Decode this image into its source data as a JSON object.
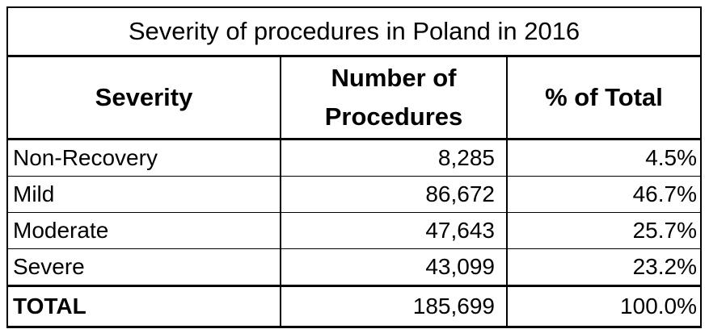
{
  "chart_data": {
    "type": "table",
    "title": "Severity of procedures in Poland in 2016",
    "columns": [
      {
        "line1": "Severity",
        "line2": ""
      },
      {
        "line1": "Number of",
        "line2": "Procedures"
      },
      {
        "line1": "% of Total",
        "line2": ""
      }
    ],
    "rows": [
      {
        "severity": "Non-Recovery",
        "procedures": "8,285",
        "percent": "4.5%"
      },
      {
        "severity": "Mild",
        "procedures": "86,672",
        "percent": "46.7%"
      },
      {
        "severity": "Moderate",
        "procedures": "47,643",
        "percent": "25.7%"
      },
      {
        "severity": "Severe",
        "procedures": "43,099",
        "percent": "23.2%"
      }
    ],
    "total": {
      "label": "TOTAL",
      "procedures": "185,699",
      "percent": "100.0%"
    }
  }
}
